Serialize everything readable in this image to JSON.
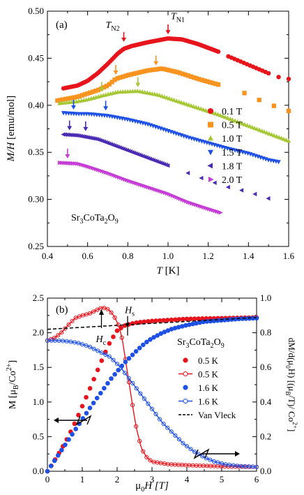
{
  "chart_data": [
    {
      "type": "scatter",
      "panel_label": "(a)",
      "xlabel_main": "T",
      "xlabel_unit": " [K]",
      "ylabel_main": "M/H",
      "ylabel_unit": " [emu/mol]",
      "xlim": [
        0.4,
        1.6
      ],
      "ylim": [
        0.25,
        0.5
      ],
      "xticks": [
        "0.4",
        "0.6",
        "0.8",
        "1.0",
        "1.2",
        "1.4",
        "1.6"
      ],
      "yticks": [
        "0.25",
        "0.30",
        "0.35",
        "0.40",
        "0.45",
        "0.50"
      ],
      "compound_parts": [
        "Sr",
        "3",
        "CoTa",
        "2",
        "O",
        "9"
      ],
      "annotations": [
        {
          "main": "T",
          "sub": "N2",
          "color": "#e8141c",
          "x": 0.78,
          "y": 0.463
        },
        {
          "main": "T",
          "sub": "N1",
          "color": "#e8141c",
          "x": 1.0,
          "y": 0.472
        }
      ],
      "series": [
        {
          "name": "0.1 T",
          "color": "#e8141c",
          "marker": "circle",
          "segments": [
            {
              "x0": 0.48,
              "x1": 1.25,
              "pts": [
                [
                  0.48,
                  0.418
                ],
                [
                  0.55,
                  0.421
                ],
                [
                  0.6,
                  0.426
                ],
                [
                  0.65,
                  0.434
                ],
                [
                  0.7,
                  0.444
                ],
                [
                  0.75,
                  0.455
                ],
                [
                  0.78,
                  0.46
                ],
                [
                  0.82,
                  0.463
                ],
                [
                  0.9,
                  0.467
                ],
                [
                  1.0,
                  0.471
                ],
                [
                  1.07,
                  0.47
                ],
                [
                  1.15,
                  0.465
                ],
                [
                  1.25,
                  0.457
                ]
              ],
              "n": 90
            },
            {
              "x0": 1.3,
              "x1": 1.5,
              "pts": [
                [
                  1.3,
                  0.452
                ],
                [
                  1.4,
                  0.443
                ],
                [
                  1.5,
                  0.434
                ]
              ],
              "n": 14
            },
            {
              "x0": 1.55,
              "x1": 1.6,
              "pts": [
                [
                  1.55,
                  0.43
                ],
                [
                  1.6,
                  0.428
                ]
              ],
              "n": 2
            }
          ]
        },
        {
          "name": "0.5 T",
          "color": "#f7931e",
          "marker": "square",
          "segments": [
            {
              "x0": 0.45,
              "x1": 1.25,
              "pts": [
                [
                  0.45,
                  0.405
                ],
                [
                  0.55,
                  0.409
                ],
                [
                  0.65,
                  0.416
                ],
                [
                  0.7,
                  0.421
                ],
                [
                  0.74,
                  0.428
                ],
                [
                  0.8,
                  0.432
                ],
                [
                  0.9,
                  0.437
                ],
                [
                  0.97,
                  0.439
                ],
                [
                  1.05,
                  0.435
                ],
                [
                  1.15,
                  0.428
                ],
                [
                  1.25,
                  0.422
                ]
              ],
              "n": 60
            },
            {
              "x0": 1.38,
              "x1": 1.6,
              "pts": [
                [
                  1.38,
                  0.413
                ],
                [
                  1.5,
                  0.401
                ],
                [
                  1.55,
                  0.398
                ],
                [
                  1.6,
                  0.394
                ]
              ],
              "n": 4
            }
          ]
        },
        {
          "name": "1.0 T",
          "color": "#a6c734",
          "marker": "triangle-up",
          "segments": [
            {
              "x0": 0.46,
              "x1": 1.6,
              "pts": [
                [
                  0.46,
                  0.402
                ],
                [
                  0.55,
                  0.404
                ],
                [
                  0.6,
                  0.406
                ],
                [
                  0.67,
                  0.41
                ],
                [
                  0.75,
                  0.414
                ],
                [
                  0.85,
                  0.415
                ],
                [
                  0.95,
                  0.411
                ],
                [
                  1.05,
                  0.404
                ],
                [
                  1.15,
                  0.397
                ],
                [
                  1.25,
                  0.39
                ],
                [
                  1.35,
                  0.382
                ],
                [
                  1.45,
                  0.374
                ],
                [
                  1.55,
                  0.366
                ],
                [
                  1.6,
                  0.362
                ]
              ],
              "n": 95
            }
          ]
        },
        {
          "name": "1.5 T",
          "color": "#1e50e6",
          "marker": "triangle-down",
          "segments": [
            {
              "x0": 0.48,
              "x1": 1.55,
              "pts": [
                [
                  0.48,
                  0.392
                ],
                [
                  0.55,
                  0.391
                ],
                [
                  0.6,
                  0.391
                ],
                [
                  0.7,
                  0.389
                ],
                [
                  0.8,
                  0.385
                ],
                [
                  0.9,
                  0.38
                ],
                [
                  1.0,
                  0.373
                ],
                [
                  1.1,
                  0.366
                ],
                [
                  1.2,
                  0.36
                ],
                [
                  1.3,
                  0.354
                ],
                [
                  1.4,
                  0.349
                ],
                [
                  1.5,
                  0.342
                ],
                [
                  1.55,
                  0.34
                ]
              ],
              "n": 85
            }
          ]
        },
        {
          "name": "1.8 T",
          "color": "#4a2bb4",
          "marker": "triangle-left",
          "segments": [
            {
              "x0": 0.48,
              "x1": 1.0,
              "pts": [
                [
                  0.48,
                  0.369
                ],
                [
                  0.55,
                  0.368
                ],
                [
                  0.6,
                  0.366
                ],
                [
                  0.65,
                  0.364
                ],
                [
                  0.7,
                  0.36
                ],
                [
                  0.8,
                  0.352
                ],
                [
                  0.9,
                  0.344
                ],
                [
                  1.0,
                  0.336
                ]
              ],
              "n": 60
            },
            {
              "x0": 1.1,
              "x1": 1.5,
              "pts": [
                [
                  1.1,
                  0.328
                ],
                [
                  1.2,
                  0.32
                ],
                [
                  1.3,
                  0.313
                ],
                [
                  1.4,
                  0.308
                ],
                [
                  1.5,
                  0.301
                ]
              ],
              "n": 7
            }
          ]
        },
        {
          "name": "2.0 T",
          "color": "#c63cd6",
          "marker": "triangle-right",
          "segments": [
            {
              "x0": 0.46,
              "x1": 1.26,
              "pts": [
                [
                  0.46,
                  0.339
                ],
                [
                  0.55,
                  0.338
                ],
                [
                  0.6,
                  0.335
                ],
                [
                  0.7,
                  0.328
                ],
                [
                  0.8,
                  0.32
                ],
                [
                  0.9,
                  0.313
                ],
                [
                  1.0,
                  0.306
                ],
                [
                  1.1,
                  0.297
                ],
                [
                  1.2,
                  0.29
                ],
                [
                  1.26,
                  0.286
                ]
              ],
              "n": 85
            }
          ]
        }
      ],
      "arrows": [
        {
          "x": 0.78,
          "y": 0.463,
          "color": "#e8141c"
        },
        {
          "x": 1.0,
          "y": 0.471,
          "color": "#e8141c"
        },
        {
          "x": 0.74,
          "y": 0.428,
          "color": "#f7931e"
        },
        {
          "x": 0.94,
          "y": 0.438,
          "color": "#f7931e"
        },
        {
          "x": 0.67,
          "y": 0.41,
          "color": "#a6c734"
        },
        {
          "x": 0.85,
          "y": 0.415,
          "color": "#a6c734"
        },
        {
          "x": 0.53,
          "y": 0.391,
          "color": "#1e50e6"
        },
        {
          "x": 0.69,
          "y": 0.39,
          "color": "#1e50e6"
        },
        {
          "x": 0.51,
          "y": 0.369,
          "color": "#4a2bb4"
        },
        {
          "x": 0.59,
          "y": 0.368,
          "color": "#4a2bb4"
        },
        {
          "x": 0.5,
          "y": 0.339,
          "color": "#c63cd6"
        }
      ]
    },
    {
      "type": "line",
      "panel_label": "(b)",
      "xlabel_main": "μ",
      "xlabel_sub": "0",
      "xlabel_rest": "H  [T]",
      "ylabel_left": "M [μ",
      "ylabel_left_sub": "B",
      "ylabel_left_rest": "/Co",
      "ylabel_left_sup": "2+",
      "ylabel_left_end": "]",
      "ylabel_right": "dM/d(μ",
      "ylabel_right_sub": "0",
      "ylabel_right_rest": "H) [(μ",
      "ylabel_right_sub2": "B",
      "ylabel_right_rest2": "/T)/ Co",
      "ylabel_right_sup": "2+",
      "ylabel_right_end": "]",
      "xlim": [
        0,
        6
      ],
      "ylim_left": [
        0,
        2.5
      ],
      "ylim_right": [
        0,
        1.0
      ],
      "xticks": [
        "0",
        "1",
        "2",
        "3",
        "4",
        "5",
        "6"
      ],
      "yticks_left": [
        "0.0",
        "0.5",
        "1.0",
        "1.5",
        "2.0",
        "2.5"
      ],
      "yticks_right": [
        "0.0",
        "0.2",
        "0.4",
        "0.6",
        "0.8",
        "1.0"
      ],
      "compound_parts": [
        "Sr",
        "3",
        "CoTa",
        "2",
        "O",
        "9"
      ],
      "hc_label": {
        "main": "H",
        "sub": "c"
      },
      "hs_label": {
        "main": "H",
        "sub": "s"
      },
      "series": [
        {
          "name": "0.5 K",
          "color": "#e8141c",
          "style": "dots",
          "axis": "left",
          "pts": [
            [
              0,
              0.0
            ],
            [
              0.1,
              0.07
            ],
            [
              0.2,
              0.15
            ],
            [
              0.4,
              0.32
            ],
            [
              0.6,
              0.5
            ],
            [
              0.8,
              0.71
            ],
            [
              1.0,
              0.94
            ],
            [
              1.2,
              1.17
            ],
            [
              1.4,
              1.41
            ],
            [
              1.6,
              1.65
            ],
            [
              1.8,
              1.87
            ],
            [
              2.0,
              2.03
            ],
            [
              2.2,
              2.1
            ],
            [
              2.4,
              2.13
            ],
            [
              2.6,
              2.15
            ],
            [
              3.0,
              2.17
            ],
            [
              4.0,
              2.2
            ],
            [
              5.0,
              2.21
            ],
            [
              6.0,
              2.22
            ]
          ],
          "n": 55
        },
        {
          "name": "0.5 K",
          "color": "#e8141c",
          "style": "line-circles",
          "axis": "right",
          "pts": [
            [
              0,
              0.755
            ],
            [
              0.2,
              0.77
            ],
            [
              0.4,
              0.8
            ],
            [
              0.6,
              0.845
            ],
            [
              0.8,
              0.885
            ],
            [
              1.0,
              0.9
            ],
            [
              1.2,
              0.91
            ],
            [
              1.3,
              0.92
            ],
            [
              1.5,
              0.94
            ],
            [
              1.6,
              0.945
            ],
            [
              1.75,
              0.935
            ],
            [
              1.9,
              0.9
            ],
            [
              2.05,
              0.84
            ],
            [
              2.15,
              0.76
            ],
            [
              2.25,
              0.63
            ],
            [
              2.35,
              0.5
            ],
            [
              2.45,
              0.37
            ],
            [
              2.55,
              0.25
            ],
            [
              2.7,
              0.13
            ],
            [
              2.85,
              0.08
            ],
            [
              3.0,
              0.055
            ],
            [
              3.5,
              0.04
            ],
            [
              4.0,
              0.035
            ],
            [
              5.0,
              0.028
            ],
            [
              6.0,
              0.025
            ]
          ],
          "n": 60
        },
        {
          "name": "1.6 K",
          "color": "#1e50e6",
          "style": "dots",
          "axis": "left",
          "pts": [
            [
              0,
              0.0
            ],
            [
              0.2,
              0.15
            ],
            [
              0.4,
              0.3
            ],
            [
              0.6,
              0.45
            ],
            [
              0.8,
              0.6
            ],
            [
              1.0,
              0.75
            ],
            [
              1.2,
              0.9
            ],
            [
              1.4,
              1.04
            ],
            [
              1.6,
              1.18
            ],
            [
              1.8,
              1.32
            ],
            [
              2.0,
              1.44
            ],
            [
              2.2,
              1.56
            ],
            [
              2.4,
              1.66
            ],
            [
              2.6,
              1.76
            ],
            [
              2.8,
              1.85
            ],
            [
              3.0,
              1.92
            ],
            [
              3.3,
              2.0
            ],
            [
              3.6,
              2.06
            ],
            [
              4.0,
              2.11
            ],
            [
              4.5,
              2.16
            ],
            [
              5.0,
              2.18
            ],
            [
              5.5,
              2.2
            ],
            [
              6.0,
              2.21
            ]
          ],
          "n": 60
        },
        {
          "name": "1.6 K",
          "color": "#1e50e6",
          "style": "line-circles",
          "axis": "right",
          "pts": [
            [
              0,
              0.755
            ],
            [
              0.3,
              0.755
            ],
            [
              0.6,
              0.75
            ],
            [
              0.9,
              0.74
            ],
            [
              1.2,
              0.72
            ],
            [
              1.5,
              0.69
            ],
            [
              1.8,
              0.66
            ],
            [
              2.1,
              0.6
            ],
            [
              2.4,
              0.52
            ],
            [
              2.7,
              0.44
            ],
            [
              3.0,
              0.36
            ],
            [
              3.3,
              0.28
            ],
            [
              3.6,
              0.22
            ],
            [
              3.9,
              0.16
            ],
            [
              4.2,
              0.115
            ],
            [
              4.5,
              0.08
            ],
            [
              4.8,
              0.055
            ],
            [
              5.1,
              0.04
            ],
            [
              5.5,
              0.03
            ],
            [
              6.0,
              0.025
            ]
          ],
          "n": 55
        },
        {
          "name": "Van Vleck",
          "color": "#000000",
          "style": "dashed",
          "axis": "left",
          "pts": [
            [
              0,
              2.05
            ],
            [
              6.0,
              2.22
            ]
          ],
          "n": 2
        }
      ],
      "hc_pos": {
        "x": 1.55,
        "y": 2.37
      },
      "hs_pos": {
        "x": 2.3,
        "y": 2.1
      }
    }
  ]
}
